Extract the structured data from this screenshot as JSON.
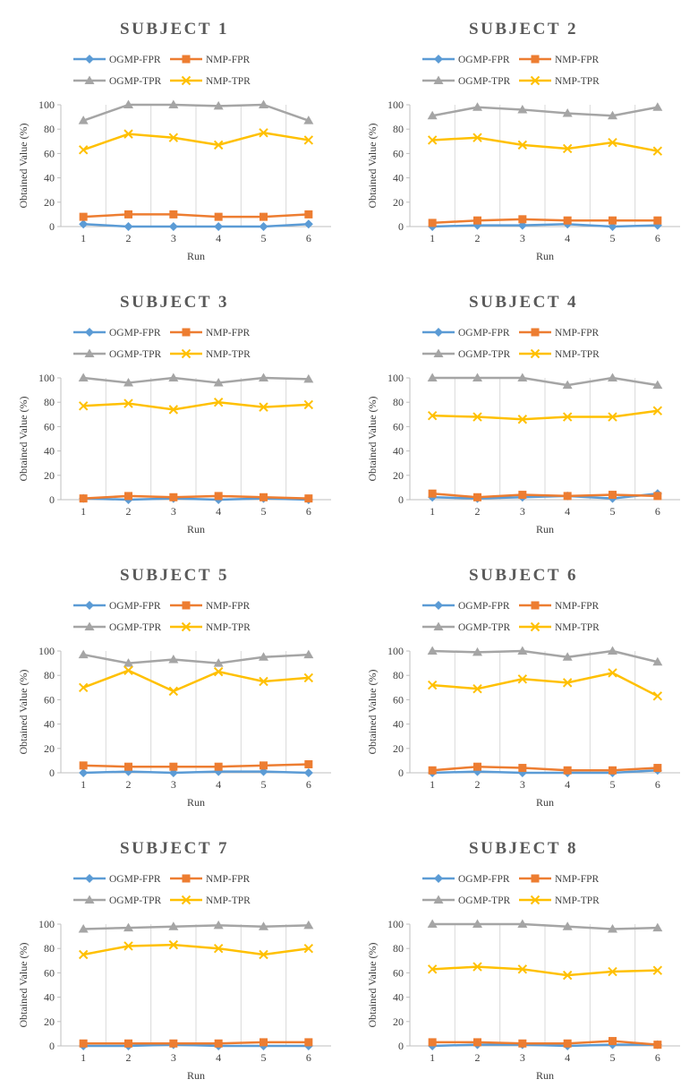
{
  "legend_series_order": [
    "OGMP-FPR",
    "NMP-FPR",
    "OGMP-TPR",
    "NMP-TPR"
  ],
  "colors": {
    "OGMP-FPR": "#5B9BD5",
    "NMP-FPR": "#ED7D31",
    "OGMP-TPR": "#A5A5A5",
    "NMP-TPR": "#FFC000",
    "grid": "#d9d9d9",
    "axis": "#bfbfbf",
    "text": "#404040",
    "title": "#595959"
  },
  "markers": {
    "OGMP-FPR": "diamond",
    "NMP-FPR": "square",
    "OGMP-TPR": "triangle",
    "NMP-TPR": "x"
  },
  "chart_data": [
    {
      "type": "line",
      "title": "SUBJECT 1",
      "xlabel": "Run",
      "ylabel": "Obtained Value (%)",
      "categories": [
        "1",
        "2",
        "3",
        "4",
        "5",
        "6"
      ],
      "ylim": [
        0,
        100
      ],
      "yticks": [
        0,
        20,
        40,
        60,
        80,
        100
      ],
      "grid": "vertical",
      "legend_position": "top",
      "series": [
        {
          "name": "OGMP-FPR",
          "values": [
            2,
            0,
            0,
            0,
            0,
            2
          ]
        },
        {
          "name": "NMP-FPR",
          "values": [
            8,
            10,
            10,
            8,
            8,
            10
          ]
        },
        {
          "name": "OGMP-TPR",
          "values": [
            87,
            100,
            100,
            99,
            100,
            87
          ]
        },
        {
          "name": "NMP-TPR",
          "values": [
            63,
            76,
            73,
            67,
            77,
            71
          ]
        }
      ]
    },
    {
      "type": "line",
      "title": "SUBJECT 2",
      "xlabel": "Run",
      "ylabel": "Obtained Value (%)",
      "categories": [
        "1",
        "2",
        "3",
        "4",
        "5",
        "6"
      ],
      "ylim": [
        0,
        100
      ],
      "yticks": [
        0,
        20,
        40,
        60,
        80,
        100
      ],
      "grid": "vertical",
      "legend_position": "top",
      "series": [
        {
          "name": "OGMP-FPR",
          "values": [
            0,
            1,
            1,
            2,
            0,
            1
          ]
        },
        {
          "name": "NMP-FPR",
          "values": [
            3,
            5,
            6,
            5,
            5,
            5
          ]
        },
        {
          "name": "OGMP-TPR",
          "values": [
            91,
            98,
            96,
            93,
            91,
            98
          ]
        },
        {
          "name": "NMP-TPR",
          "values": [
            71,
            73,
            67,
            64,
            69,
            62
          ]
        }
      ]
    },
    {
      "type": "line",
      "title": "SUBJECT 3",
      "xlabel": "Run",
      "ylabel": "Obtained Value (%)",
      "categories": [
        "1",
        "2",
        "3",
        "4",
        "5",
        "6"
      ],
      "ylim": [
        0,
        100
      ],
      "yticks": [
        0,
        20,
        40,
        60,
        80,
        100
      ],
      "grid": "vertical",
      "legend_position": "top",
      "series": [
        {
          "name": "OGMP-FPR",
          "values": [
            1,
            0,
            1,
            0,
            1,
            0
          ]
        },
        {
          "name": "NMP-FPR",
          "values": [
            1,
            3,
            2,
            3,
            2,
            1
          ]
        },
        {
          "name": "OGMP-TPR",
          "values": [
            100,
            96,
            100,
            96,
            100,
            99
          ]
        },
        {
          "name": "NMP-TPR",
          "values": [
            77,
            79,
            74,
            80,
            76,
            78
          ]
        }
      ]
    },
    {
      "type": "line",
      "title": "SUBJECT 4",
      "xlabel": "Run",
      "ylabel": "Obtained Value (%)",
      "categories": [
        "1",
        "2",
        "3",
        "4",
        "5",
        "6"
      ],
      "ylim": [
        0,
        100
      ],
      "yticks": [
        0,
        20,
        40,
        60,
        80,
        100
      ],
      "grid": "vertical",
      "legend_position": "top",
      "series": [
        {
          "name": "OGMP-FPR",
          "values": [
            2,
            1,
            2,
            3,
            1,
            5
          ]
        },
        {
          "name": "NMP-FPR",
          "values": [
            5,
            2,
            4,
            3,
            4,
            3
          ]
        },
        {
          "name": "OGMP-TPR",
          "values": [
            100,
            100,
            100,
            94,
            100,
            94
          ]
        },
        {
          "name": "NMP-TPR",
          "values": [
            69,
            68,
            66,
            68,
            68,
            73
          ]
        }
      ]
    },
    {
      "type": "line",
      "title": "SUBJECT 5",
      "xlabel": "Run",
      "ylabel": "Obtained Value (%)",
      "categories": [
        "1",
        "2",
        "3",
        "4",
        "5",
        "6"
      ],
      "ylim": [
        0,
        100
      ],
      "yticks": [
        0,
        20,
        40,
        60,
        80,
        100
      ],
      "grid": "vertical",
      "legend_position": "top",
      "series": [
        {
          "name": "OGMP-FPR",
          "values": [
            0,
            1,
            0,
            1,
            1,
            0
          ]
        },
        {
          "name": "NMP-FPR",
          "values": [
            6,
            5,
            5,
            5,
            6,
            7
          ]
        },
        {
          "name": "OGMP-TPR",
          "values": [
            97,
            90,
            93,
            90,
            95,
            97
          ]
        },
        {
          "name": "NMP-TPR",
          "values": [
            70,
            84,
            67,
            83,
            75,
            78
          ]
        }
      ]
    },
    {
      "type": "line",
      "title": "SUBJECT 6",
      "xlabel": "Run",
      "ylabel": "Obtained Value (%)",
      "categories": [
        "1",
        "2",
        "3",
        "4",
        "5",
        "6"
      ],
      "ylim": [
        0,
        100
      ],
      "yticks": [
        0,
        20,
        40,
        60,
        80,
        100
      ],
      "grid": "vertical",
      "legend_position": "top",
      "series": [
        {
          "name": "OGMP-FPR",
          "values": [
            0,
            1,
            0,
            0,
            0,
            2
          ]
        },
        {
          "name": "NMP-FPR",
          "values": [
            2,
            5,
            4,
            2,
            2,
            4
          ]
        },
        {
          "name": "OGMP-TPR",
          "values": [
            100,
            99,
            100,
            95,
            100,
            91
          ]
        },
        {
          "name": "NMP-TPR",
          "values": [
            72,
            69,
            77,
            74,
            82,
            63
          ]
        }
      ]
    },
    {
      "type": "line",
      "title": "SUBJECT 7",
      "xlabel": "Run",
      "ylabel": "Obtained Value (%)",
      "categories": [
        "1",
        "2",
        "3",
        "4",
        "5",
        "6"
      ],
      "ylim": [
        0,
        100
      ],
      "yticks": [
        0,
        20,
        40,
        60,
        80,
        100
      ],
      "grid": "vertical",
      "legend_position": "top",
      "series": [
        {
          "name": "OGMP-FPR",
          "values": [
            0,
            0,
            1,
            0,
            0,
            0
          ]
        },
        {
          "name": "NMP-FPR",
          "values": [
            2,
            2,
            2,
            2,
            3,
            3
          ]
        },
        {
          "name": "OGMP-TPR",
          "values": [
            96,
            97,
            98,
            99,
            98,
            99
          ]
        },
        {
          "name": "NMP-TPR",
          "values": [
            75,
            82,
            83,
            80,
            75,
            80
          ]
        }
      ]
    },
    {
      "type": "line",
      "title": "SUBJECT 8",
      "xlabel": "Run",
      "ylabel": "Obtained Value (%)",
      "categories": [
        "1",
        "2",
        "3",
        "4",
        "5",
        "6"
      ],
      "ylim": [
        0,
        100
      ],
      "yticks": [
        0,
        20,
        40,
        60,
        80,
        100
      ],
      "grid": "vertical",
      "legend_position": "top",
      "series": [
        {
          "name": "OGMP-FPR",
          "values": [
            0,
            1,
            1,
            0,
            1,
            1
          ]
        },
        {
          "name": "NMP-FPR",
          "values": [
            3,
            3,
            2,
            2,
            4,
            1
          ]
        },
        {
          "name": "OGMP-TPR",
          "values": [
            100,
            100,
            100,
            98,
            96,
            97
          ]
        },
        {
          "name": "NMP-TPR",
          "values": [
            63,
            65,
            63,
            58,
            61,
            62
          ]
        }
      ]
    }
  ]
}
